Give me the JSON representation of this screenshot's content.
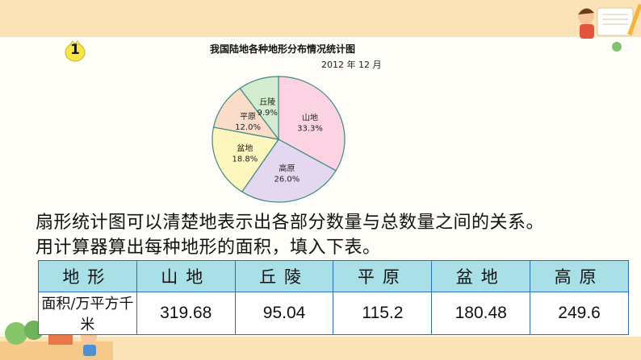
{
  "badge": {
    "number": "1"
  },
  "chart_data": {
    "type": "pie",
    "title": "我国陆地各种地形分布情况统计图",
    "subtitle": "2012 年 12 月",
    "slices": [
      {
        "name": "山地",
        "value": 33.3,
        "label": "33.3%",
        "color": "#fcd3e2"
      },
      {
        "name": "高原",
        "value": 26.0,
        "label": "26.0%",
        "color": "#e4d8f1"
      },
      {
        "name": "盆地",
        "value": 18.8,
        "label": "18.8%",
        "color": "#fdf7bf"
      },
      {
        "name": "平原",
        "value": 12.0,
        "label": "12.0%",
        "color": "#fbdcc8"
      },
      {
        "name": "丘陵",
        "value": 9.9,
        "label": "9.9%",
        "color": "#d3eccf"
      }
    ]
  },
  "text": {
    "line1": "扇形统计图可以清楚地表示出各部分数量与总数量之间的关系。",
    "line2": "用计算器算出每种地形的面积，填入下表。"
  },
  "table": {
    "headers": [
      "地形",
      "山地",
      "丘陵",
      "平原",
      "盆地",
      "高原"
    ],
    "row_label": "面积/万平方千米",
    "values": [
      "319.68",
      "95.04",
      "115.2",
      "180.48",
      "249.6"
    ]
  }
}
